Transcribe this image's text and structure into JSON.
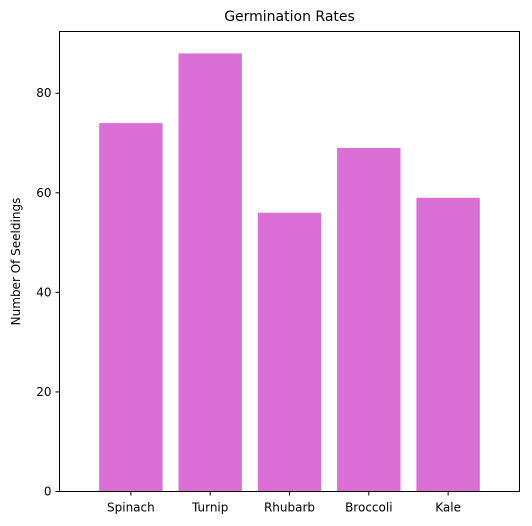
{
  "chart_data": {
    "type": "bar",
    "title": "Germination Rates",
    "xlabel": "",
    "ylabel": "Number Of Seeldings",
    "categories": [
      "Spinach",
      "Turnip",
      "Rhubarb",
      "Broccoli",
      "Kale"
    ],
    "values": [
      74,
      88,
      56,
      69,
      59
    ],
    "ylim": [
      0,
      92.4
    ],
    "yticks": [
      0,
      20,
      40,
      60,
      80
    ],
    "ytick_labels": [
      "0",
      "20",
      "40",
      "60",
      "80"
    ],
    "bar_color": "#da70d6",
    "grid": false,
    "legend": "none"
  }
}
